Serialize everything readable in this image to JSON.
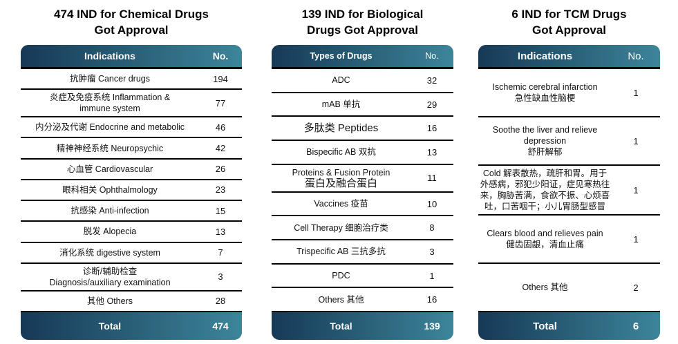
{
  "colors": {
    "bar_gradient_start": "#163957",
    "bar_gradient_end": "#3d8599",
    "bar_text": "#ffffff",
    "row_border": "#000000",
    "body_text": "#111111",
    "background": "#ffffff"
  },
  "tables": [
    {
      "title": "474 IND for Chemical Drugs\nGot Approval",
      "header": {
        "label": "Indications",
        "no": "No."
      },
      "rows": [
        {
          "label": "抗肿瘤 Cancer drugs",
          "no": "194"
        },
        {
          "label": "炎症及免疫系统 Inflammation &\nimmune system",
          "no": "77"
        },
        {
          "label": "内分泌及代谢 Endocrine and metabolic",
          "no": "46"
        },
        {
          "label": "精神神经系统 Neuropsychic",
          "no": "42"
        },
        {
          "label": "心血管 Cardiovascular",
          "no": "26"
        },
        {
          "label": "眼科相关 Ophthalmology",
          "no": "23"
        },
        {
          "label": "抗感染 Anti-infection",
          "no": "15"
        },
        {
          "label": "脱发 Alopecia",
          "no": "13"
        },
        {
          "label": "消化系统 digestive system",
          "no": "7"
        },
        {
          "label": "诊断/辅助检查\nDiagnosis/auxiliary examination",
          "no": "3"
        },
        {
          "label": "其他 Others",
          "no": "28"
        }
      ],
      "total": {
        "label": "Total",
        "no": "474"
      }
    },
    {
      "title": "139 IND for Biological\nDrugs Got Approval",
      "header": {
        "label": "Types of Drugs",
        "no": "No."
      },
      "rows": [
        {
          "label": "ADC",
          "no": "32"
        },
        {
          "label": "mAB 单抗",
          "no": "29"
        },
        {
          "label": "多肽类 Peptides",
          "no": "16"
        },
        {
          "label": "Bispecific AB 双抗",
          "no": "13"
        },
        {
          "label": "Proteins & Fusion Protein",
          "label2": "蛋白及融合蛋白",
          "no": "11"
        },
        {
          "label": "Vaccines 疫苗",
          "no": "10"
        },
        {
          "label": "Cell Therapy 细胞治疗类",
          "no": "8"
        },
        {
          "label": "Trispecific AB 三抗多抗",
          "no": "3"
        },
        {
          "label": "PDC",
          "no": "1"
        },
        {
          "label": "Others 其他",
          "no": "16"
        }
      ],
      "total": {
        "label": "Total",
        "no": "139"
      }
    },
    {
      "title": "6 IND for TCM Drugs\nGot Approval",
      "header": {
        "label": "Indications",
        "no": "No."
      },
      "rows": [
        {
          "label": "Ischemic cerebral infarction\n急性缺血性脑梗",
          "no": "1"
        },
        {
          "label": "Soothe the liver and relieve depression\n舒肝解郁",
          "no": "1"
        },
        {
          "label": "Cold 解表散热，疏肝和胃。用于外感病，邪犯少阳证，症见寒热往来，胸胁苦满，食欲不振、心烦喜吐，口苦咽干；小儿胃肠型感冒",
          "no": "1"
        },
        {
          "label": "Clears blood and relieves pain\n健齿固龈，清血止痛",
          "no": "1"
        },
        {
          "label": "Others 其他",
          "no": "2"
        }
      ],
      "total": {
        "label": "Total",
        "no": "6"
      }
    }
  ]
}
